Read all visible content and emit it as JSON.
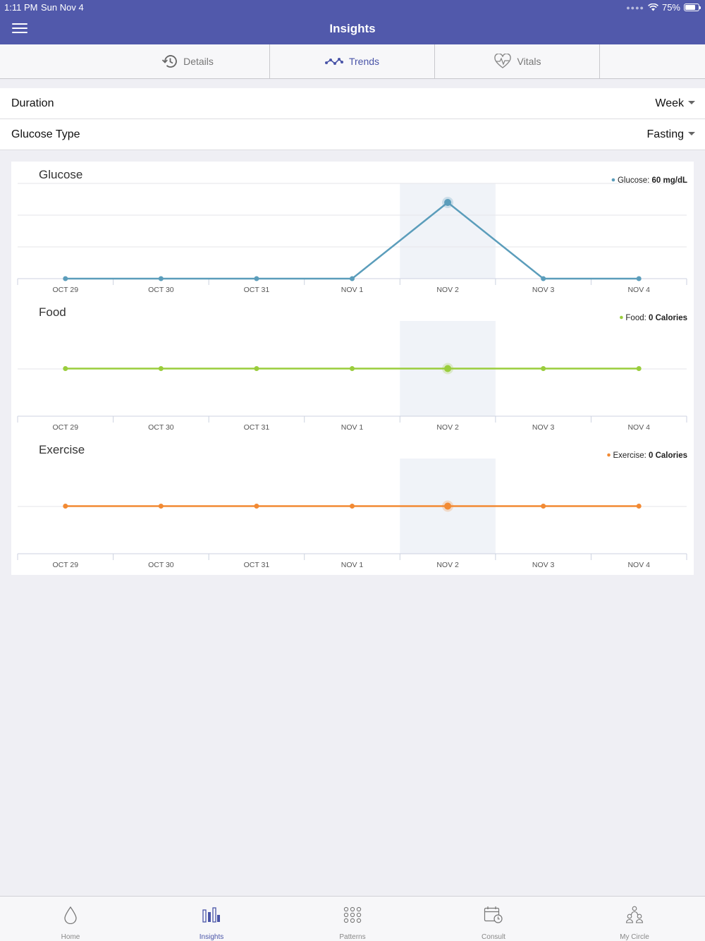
{
  "status_bar": {
    "time": "1:11 PM",
    "date": "Sun Nov 4",
    "battery": "75%"
  },
  "nav": {
    "title": "Insights"
  },
  "tabs": [
    {
      "label": "Details",
      "icon": "history-icon"
    },
    {
      "label": "Trends",
      "icon": "trend-line-icon"
    },
    {
      "label": "Vitals",
      "icon": "heart-pulse-icon"
    }
  ],
  "settings": {
    "duration": {
      "label": "Duration",
      "value": "Week"
    },
    "glucose_type": {
      "label": "Glucose Type",
      "value": "Fasting"
    }
  },
  "chart_data": [
    {
      "type": "line",
      "title": "Glucose",
      "categories": [
        "OCT 29",
        "OCT 30",
        "OCT 31",
        "NOV 1",
        "NOV 2",
        "NOV 3",
        "NOV 4"
      ],
      "series": [
        {
          "name": "Glucose",
          "values": [
            0,
            0,
            0,
            0,
            60,
            0,
            0
          ]
        }
      ],
      "ylim": [
        0,
        75
      ],
      "highlight": "NOV 2",
      "legend_label": "Glucose:",
      "legend_value": "60 mg/dL",
      "color": "#5b9dbb"
    },
    {
      "type": "line",
      "title": "Food",
      "categories": [
        "OCT 29",
        "OCT 30",
        "OCT 31",
        "NOV 1",
        "NOV 2",
        "NOV 3",
        "NOV 4"
      ],
      "series": [
        {
          "name": "Food",
          "values": [
            0,
            0,
            0,
            0,
            0,
            0,
            0
          ]
        }
      ],
      "ylim": [
        -1,
        1
      ],
      "highlight": "NOV 2",
      "legend_label": "Food:",
      "legend_value": "0 Calories",
      "color": "#9acd3c"
    },
    {
      "type": "line",
      "title": "Exercise",
      "categories": [
        "OCT 29",
        "OCT 30",
        "OCT 31",
        "NOV 1",
        "NOV 2",
        "NOV 3",
        "NOV 4"
      ],
      "series": [
        {
          "name": "Exercise",
          "values": [
            0,
            0,
            0,
            0,
            0,
            0,
            0
          ]
        }
      ],
      "ylim": [
        -1,
        1
      ],
      "highlight": "NOV 2",
      "legend_label": "Exercise:",
      "legend_value": "0 Calories",
      "color": "#f28a33"
    }
  ],
  "bottom_nav": [
    {
      "label": "Home",
      "icon": "drop-icon"
    },
    {
      "label": "Insights",
      "icon": "bar-chart-icon"
    },
    {
      "label": "Patterns",
      "icon": "dot-grid-icon"
    },
    {
      "label": "Consult",
      "icon": "calendar-clock-icon"
    },
    {
      "label": "My Circle",
      "icon": "people-icon"
    }
  ],
  "colors": {
    "brand": "#5159ab",
    "active": "#4a55a8",
    "highlight_band": "#f0f3f8"
  }
}
